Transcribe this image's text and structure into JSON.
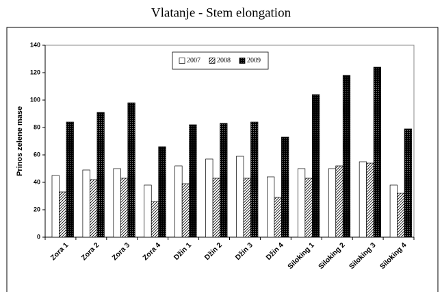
{
  "chart_data": {
    "type": "bar",
    "title": "Vlatanje - Stem elongation",
    "ylabel": "Prinos zelene mase",
    "categories": [
      "Zora 1",
      "Zora 2",
      "Zora 3",
      "Zora 4",
      "Džin 1",
      "Džin 2",
      "Džin 3",
      "Džin 4",
      "Siloking 1",
      "Siloking 2",
      "Siloking 3",
      "Siloking 4"
    ],
    "series": [
      {
        "name": "2007",
        "color": "#ffffff",
        "pattern": "none",
        "values": [
          45,
          49,
          50,
          38,
          52,
          57,
          59,
          44,
          50,
          50,
          55,
          38
        ]
      },
      {
        "name": "2008",
        "color": "#ffffff",
        "pattern": "hatch",
        "values": [
          33,
          42,
          43,
          26,
          39,
          43,
          43,
          29,
          43,
          52,
          54,
          32
        ]
      },
      {
        "name": "2009",
        "color": "#000000",
        "pattern": "dots",
        "values": [
          84,
          91,
          98,
          66,
          82,
          83,
          84,
          73,
          104,
          118,
          124,
          79
        ]
      }
    ],
    "ylim": [
      0,
      140
    ],
    "yticks": [
      0,
      20,
      40,
      60,
      80,
      100,
      120,
      140
    ],
    "grid": false,
    "legend": "top"
  }
}
